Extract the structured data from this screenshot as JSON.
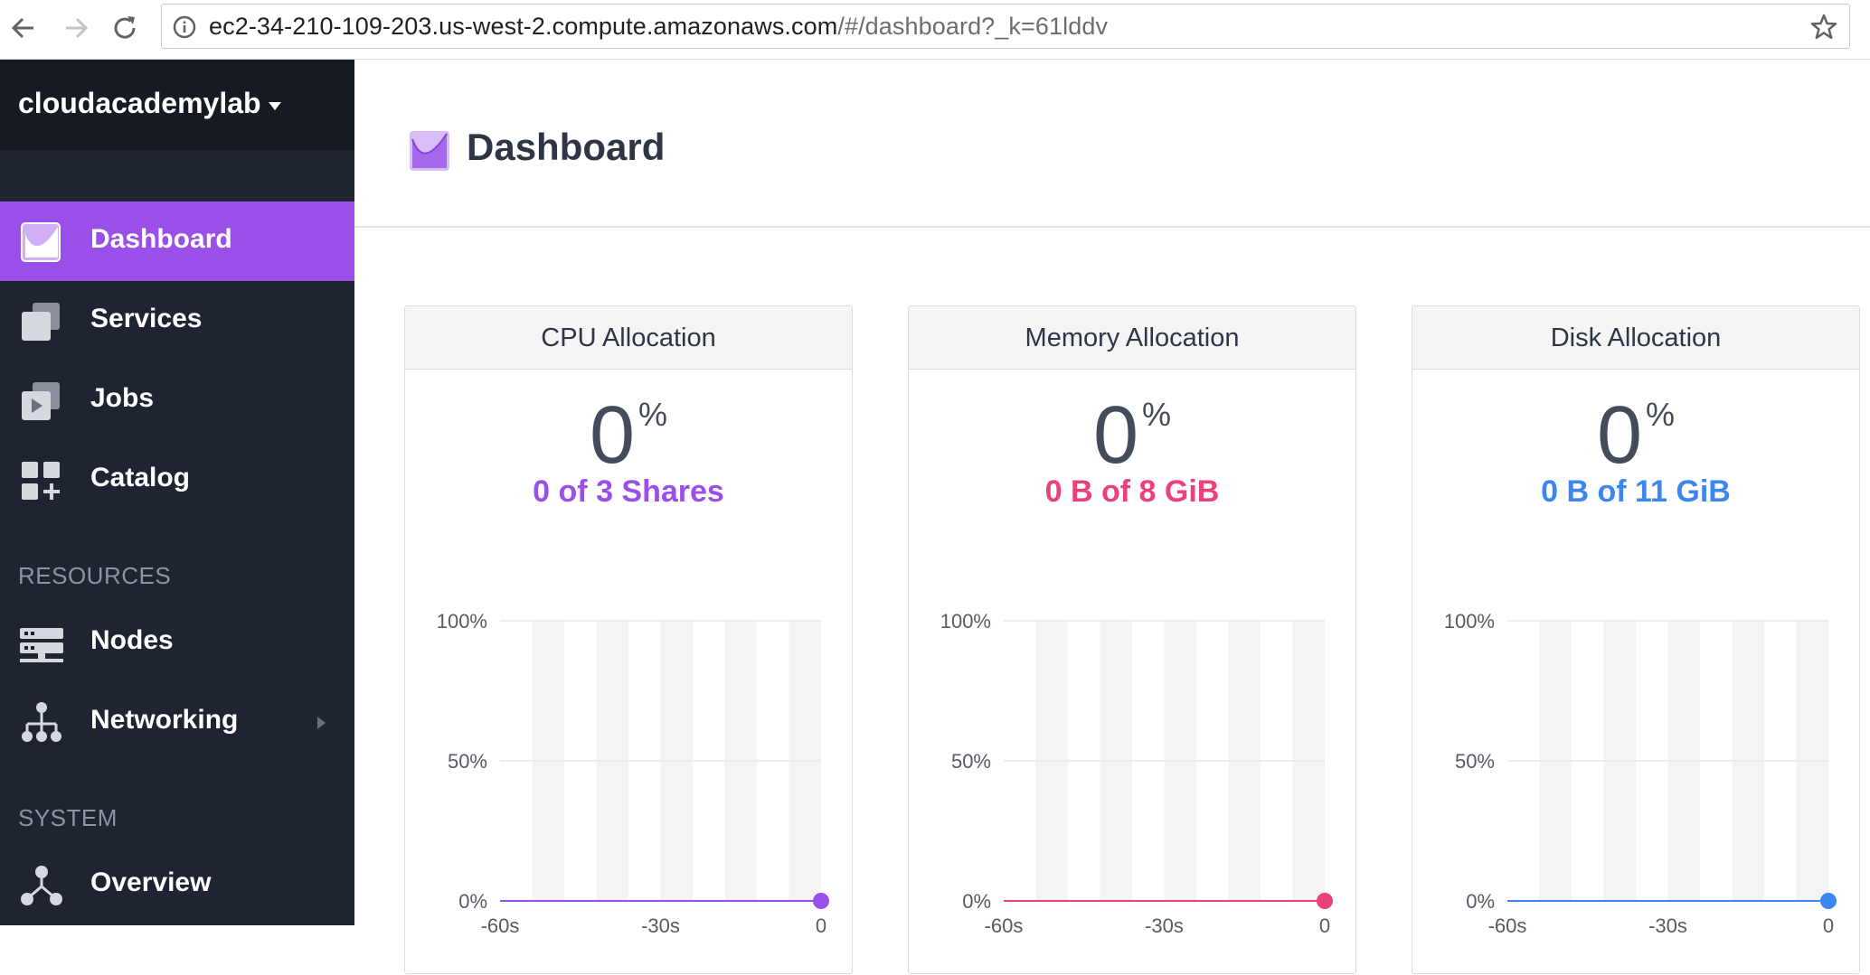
{
  "browser": {
    "url_host": "ec2-34-210-109-203.us-west-2.compute.amazonaws.com",
    "url_path": "/#/dashboard?_k=61lddv"
  },
  "sidebar": {
    "project": "cloudacademylab",
    "items": [
      {
        "label": "Dashboard",
        "icon": "dashboard-icon"
      },
      {
        "label": "Services",
        "icon": "services-icon"
      },
      {
        "label": "Jobs",
        "icon": "jobs-icon"
      },
      {
        "label": "Catalog",
        "icon": "catalog-icon"
      }
    ],
    "resources_label": "RESOURCES",
    "resources": [
      {
        "label": "Nodes",
        "icon": "nodes-icon"
      },
      {
        "label": "Networking",
        "icon": "networking-icon"
      }
    ],
    "system_label": "SYSTEM",
    "system": [
      {
        "label": "Overview",
        "icon": "overview-icon"
      }
    ]
  },
  "page": {
    "title": "Dashboard"
  },
  "colors": {
    "cpu": "#9a4fe8",
    "memory": "#ec407a",
    "disk": "#3b86f0",
    "active": "#9a4fe8"
  },
  "cards": [
    {
      "title": "CPU Allocation",
      "percent": "0",
      "percent_sign": "%",
      "value_text": "0 of 3 Shares",
      "chart_data": {
        "type": "line",
        "x_ticks": [
          "-60s",
          "-30s",
          "0"
        ],
        "y_ticks": [
          "100%",
          "50%",
          "0%"
        ],
        "x": [
          -60,
          0
        ],
        "y": [
          0,
          0
        ],
        "ylim": [
          0,
          100
        ],
        "xlim": [
          -60,
          0
        ],
        "color": "#9a4fe8"
      }
    },
    {
      "title": "Memory Allocation",
      "percent": "0",
      "percent_sign": "%",
      "value_text": "0 B of 8 GiB",
      "chart_data": {
        "type": "line",
        "x_ticks": [
          "-60s",
          "-30s",
          "0"
        ],
        "y_ticks": [
          "100%",
          "50%",
          "0%"
        ],
        "x": [
          -60,
          0
        ],
        "y": [
          0,
          0
        ],
        "ylim": [
          0,
          100
        ],
        "xlim": [
          -60,
          0
        ],
        "color": "#ec407a"
      }
    },
    {
      "title": "Disk Allocation",
      "percent": "0",
      "percent_sign": "%",
      "value_text": "0 B of 11 GiB",
      "chart_data": {
        "type": "line",
        "x_ticks": [
          "-60s",
          "-30s",
          "0"
        ],
        "y_ticks": [
          "100%",
          "50%",
          "0%"
        ],
        "x": [
          -60,
          0
        ],
        "y": [
          0,
          0
        ],
        "ylim": [
          0,
          100
        ],
        "xlim": [
          -60,
          0
        ],
        "color": "#3b86f0"
      }
    }
  ]
}
